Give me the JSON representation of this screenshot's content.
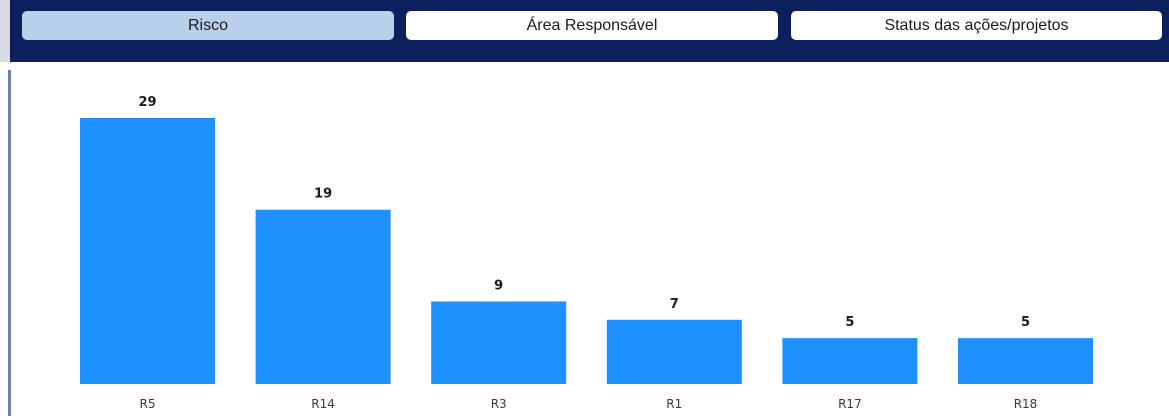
{
  "tabs": [
    {
      "label": "Risco",
      "active": true
    },
    {
      "label": "Área Responsável",
      "active": false
    },
    {
      "label": "Status das ações/projetos",
      "active": false
    }
  ],
  "colors": {
    "header_bg": "#0e1f5e",
    "tab_active": "#b9d0ea",
    "tab_inactive": "#ffffff",
    "bar": "#1e90ff"
  },
  "chart_data": {
    "type": "bar",
    "categories": [
      "R5",
      "R14",
      "R3",
      "R1",
      "R17",
      "R18"
    ],
    "values": [
      29,
      19,
      9,
      7,
      5,
      5
    ],
    "title": "",
    "xlabel": "",
    "ylabel": "",
    "ylim": [
      0,
      29
    ],
    "grid": false,
    "data_labels": true
  }
}
